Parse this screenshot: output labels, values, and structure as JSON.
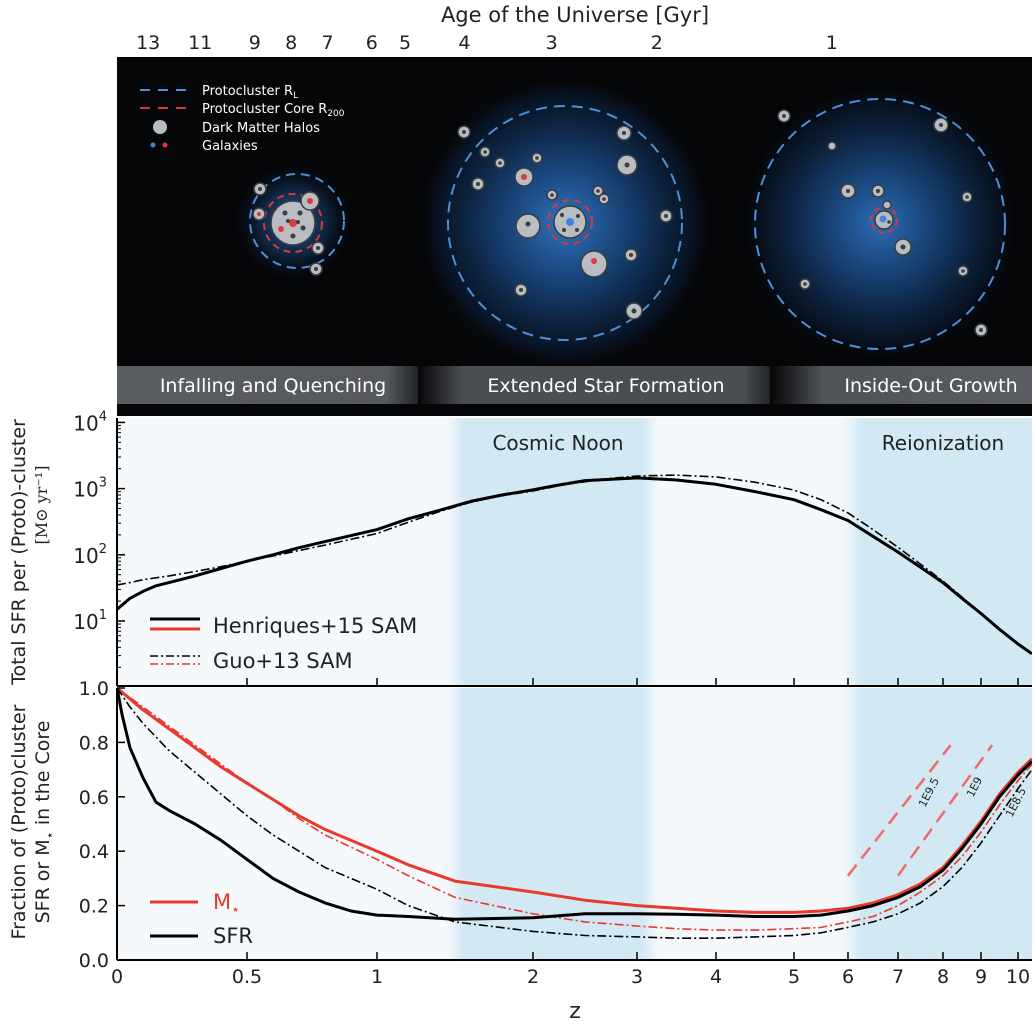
{
  "top_axis": {
    "label": "Age of the Universe  [Gyr]",
    "ticks": [
      {
        "label": "13",
        "z": 0.12
      },
      {
        "label": "11",
        "z": 0.32
      },
      {
        "label": "9",
        "z": 0.53
      },
      {
        "label": "8",
        "z": 0.67
      },
      {
        "label": "7",
        "z": 0.81
      },
      {
        "label": "6",
        "z": 0.98
      },
      {
        "label": "5",
        "z": 1.18
      },
      {
        "label": "4",
        "z": 1.56
      },
      {
        "label": "3",
        "z": 2.18
      },
      {
        "label": "2",
        "z": 3.25
      },
      {
        "label": "1",
        "z": 5.7
      }
    ]
  },
  "illustration": {
    "legend": {
      "protocluster_rl": "Protocluster R",
      "protocluster_rl_sub": "L",
      "core_r200": "Protocluster Core R",
      "core_r200_sub": "200",
      "halos": "Dark Matter Halos",
      "galaxies": "Galaxies"
    },
    "colors": {
      "background": "#050608",
      "dashed_outer": "#4f8fd6",
      "dashed_core": "#d9373b",
      "halo_fill": "#b9bcc0",
      "galaxy_blue": "#3e86d8",
      "galaxy_red": "#e0393c"
    },
    "phases": [
      {
        "label": "Infalling and Quenching"
      },
      {
        "label": "Extended Star Formation"
      },
      {
        "label": "Inside-Out Growth"
      }
    ]
  },
  "chart_data": [
    {
      "type": "line",
      "yscale": "log",
      "ylabel": "Total SFR per (Proto)-cluster",
      "ylabel_unit": "[M⊙ yr⁻¹]",
      "ylim": [
        3,
        10000
      ],
      "y_ticks": [
        {
          "base": "10",
          "exp": "1",
          "value": 10
        },
        {
          "base": "10",
          "exp": "2",
          "value": 100
        },
        {
          "base": "10",
          "exp": "3",
          "value": 1000
        },
        {
          "base": "10",
          "exp": "4",
          "value": 10000
        }
      ],
      "shaded_regions": [
        {
          "label": "Cosmic Noon",
          "z_range": [
            1.5,
            3.0
          ]
        },
        {
          "label": "Reionization",
          "z_range": [
            6.0,
            10.5
          ]
        }
      ],
      "legend": [
        {
          "label": "Henriques+15 SAM",
          "style": "solid"
        },
        {
          "label": "Guo+13 SAM",
          "style": "dashdot"
        }
      ],
      "series": [
        {
          "name": "Henriques+15 SAM",
          "color": "#000000",
          "style": "solid",
          "points": [
            [
              0,
              15
            ],
            [
              0.05,
              22
            ],
            [
              0.1,
              28
            ],
            [
              0.15,
              34
            ],
            [
              0.2,
              38
            ],
            [
              0.3,
              48
            ],
            [
              0.4,
              62
            ],
            [
              0.5,
              80
            ],
            [
              0.6,
              100
            ],
            [
              0.7,
              128
            ],
            [
              0.8,
              158
            ],
            [
              0.9,
              195
            ],
            [
              1.0,
              240
            ],
            [
              1.2,
              350
            ],
            [
              1.4,
              470
            ],
            [
              1.6,
              640
            ],
            [
              1.8,
              800
            ],
            [
              2.0,
              960
            ],
            [
              2.2,
              1100
            ],
            [
              2.5,
              1320
            ],
            [
              3.0,
              1450
            ],
            [
              3.5,
              1350
            ],
            [
              4.0,
              1160
            ],
            [
              4.5,
              900
            ],
            [
              5.0,
              680
            ],
            [
              5.5,
              480
            ],
            [
              6.0,
              330
            ],
            [
              6.5,
              190
            ],
            [
              7.0,
              110
            ],
            [
              7.5,
              65
            ],
            [
              8.0,
              38
            ],
            [
              8.5,
              22
            ],
            [
              9.0,
              13
            ],
            [
              9.5,
              7.5
            ],
            [
              10.0,
              4.5
            ],
            [
              10.4,
              3.2
            ]
          ]
        },
        {
          "name": "Guo+13 SAM",
          "color": "#000000",
          "style": "dashdot",
          "points": [
            [
              0,
              35
            ],
            [
              0.05,
              38
            ],
            [
              0.1,
              42
            ],
            [
              0.2,
              48
            ],
            [
              0.3,
              56
            ],
            [
              0.4,
              66
            ],
            [
              0.5,
              80
            ],
            [
              0.6,
              96
            ],
            [
              0.8,
              140
            ],
            [
              1.0,
              210
            ],
            [
              1.2,
              310
            ],
            [
              1.4,
              450
            ],
            [
              1.6,
              620
            ],
            [
              1.8,
              780
            ],
            [
              2.0,
              920
            ],
            [
              2.3,
              1150
            ],
            [
              2.7,
              1400
            ],
            [
              3.0,
              1550
            ],
            [
              3.5,
              1600
            ],
            [
              4.0,
              1500
            ],
            [
              4.5,
              1250
            ],
            [
              5.0,
              950
            ],
            [
              5.5,
              680
            ],
            [
              6.0,
              430
            ],
            [
              6.5,
              240
            ],
            [
              7.0,
              130
            ],
            [
              7.5,
              72
            ],
            [
              8.0,
              40
            ],
            [
              8.5,
              23
            ],
            [
              9.0,
              13
            ],
            [
              9.5,
              7.5
            ],
            [
              10.0,
              4.5
            ],
            [
              10.4,
              3.3
            ]
          ]
        }
      ]
    },
    {
      "type": "line",
      "ylabel_line1": "Fraction of (Proto)cluster",
      "ylabel_line2": "SFR or M",
      "ylabel_line2_suffix": " in the Core",
      "xlabel": "z",
      "ylim": [
        0.0,
        1.0
      ],
      "y_ticks": [
        "0.0",
        "0.2",
        "0.4",
        "0.6",
        "0.8",
        "1.0"
      ],
      "x_ticks": [
        {
          "label": "0",
          "value": 0
        },
        {
          "label": "0.5",
          "value": 0.5
        },
        {
          "label": "1",
          "value": 1
        },
        {
          "label": "2",
          "value": 2
        },
        {
          "label": "3",
          "value": 3
        },
        {
          "label": "4",
          "value": 4
        },
        {
          "label": "5",
          "value": 5
        },
        {
          "label": "6",
          "value": 6
        },
        {
          "label": "7",
          "value": 7
        },
        {
          "label": "8",
          "value": 8
        },
        {
          "label": "9",
          "value": 9
        },
        {
          "label": "10",
          "value": 10
        }
      ],
      "legend": [
        {
          "label": "M",
          "color": "#e8392c"
        },
        {
          "label": "SFR",
          "color": "#000000"
        }
      ],
      "mass_labels": [
        "1E9.5",
        "1E9",
        "1E8.5"
      ],
      "series": [
        {
          "name": "M⋆ Henriques+15",
          "color": "#e8392c",
          "style": "solid",
          "points": [
            [
              0,
              1.0
            ],
            [
              0.1,
              0.92
            ],
            [
              0.2,
              0.85
            ],
            [
              0.3,
              0.78
            ],
            [
              0.4,
              0.71
            ],
            [
              0.5,
              0.65
            ],
            [
              0.6,
              0.59
            ],
            [
              0.7,
              0.53
            ],
            [
              0.8,
              0.48
            ],
            [
              1.0,
              0.4
            ],
            [
              1.2,
              0.35
            ],
            [
              1.5,
              0.29
            ],
            [
              2.0,
              0.25
            ],
            [
              2.5,
              0.22
            ],
            [
              3.0,
              0.2
            ],
            [
              3.5,
              0.19
            ],
            [
              4.0,
              0.18
            ],
            [
              4.5,
              0.175
            ],
            [
              5.0,
              0.175
            ],
            [
              5.5,
              0.18
            ],
            [
              6.0,
              0.19
            ],
            [
              6.5,
              0.21
            ],
            [
              7.0,
              0.24
            ],
            [
              7.5,
              0.28
            ],
            [
              8.0,
              0.34
            ],
            [
              8.5,
              0.42
            ],
            [
              9.0,
              0.51
            ],
            [
              9.5,
              0.61
            ],
            [
              10.0,
              0.69
            ],
            [
              10.4,
              0.74
            ]
          ]
        },
        {
          "name": "M⋆ Guo+13",
          "color": "#e8392c",
          "style": "dashdot",
          "points": [
            [
              0,
              1.0
            ],
            [
              0.1,
              0.93
            ],
            [
              0.2,
              0.86
            ],
            [
              0.3,
              0.79
            ],
            [
              0.4,
              0.72
            ],
            [
              0.5,
              0.65
            ],
            [
              0.6,
              0.59
            ],
            [
              0.7,
              0.52
            ],
            [
              0.8,
              0.46
            ],
            [
              1.0,
              0.37
            ],
            [
              1.2,
              0.31
            ],
            [
              1.5,
              0.23
            ],
            [
              2.0,
              0.17
            ],
            [
              2.5,
              0.14
            ],
            [
              3.0,
              0.125
            ],
            [
              3.5,
              0.115
            ],
            [
              4.0,
              0.11
            ],
            [
              4.5,
              0.11
            ],
            [
              5.0,
              0.115
            ],
            [
              5.5,
              0.12
            ],
            [
              6.0,
              0.14
            ],
            [
              6.5,
              0.16
            ],
            [
              7.0,
              0.2
            ],
            [
              7.5,
              0.25
            ],
            [
              8.0,
              0.31
            ],
            [
              8.5,
              0.38
            ],
            [
              9.0,
              0.47
            ],
            [
              9.5,
              0.57
            ],
            [
              10.0,
              0.66
            ],
            [
              10.4,
              0.72
            ]
          ]
        },
        {
          "name": "SFR Henriques+15",
          "color": "#000000",
          "style": "solid",
          "points": [
            [
              0,
              1.0
            ],
            [
              0.02,
              0.9
            ],
            [
              0.05,
              0.78
            ],
            [
              0.1,
              0.67
            ],
            [
              0.15,
              0.58
            ],
            [
              0.2,
              0.55
            ],
            [
              0.3,
              0.5
            ],
            [
              0.4,
              0.44
            ],
            [
              0.5,
              0.37
            ],
            [
              0.6,
              0.3
            ],
            [
              0.7,
              0.25
            ],
            [
              0.8,
              0.21
            ],
            [
              0.9,
              0.18
            ],
            [
              1.0,
              0.165
            ],
            [
              1.2,
              0.16
            ],
            [
              1.5,
              0.15
            ],
            [
              2.0,
              0.155
            ],
            [
              2.5,
              0.17
            ],
            [
              3.0,
              0.17
            ],
            [
              3.5,
              0.168
            ],
            [
              4.0,
              0.165
            ],
            [
              4.5,
              0.16
            ],
            [
              5.0,
              0.16
            ],
            [
              5.5,
              0.165
            ],
            [
              6.0,
              0.18
            ],
            [
              6.5,
              0.2
            ],
            [
              7.0,
              0.23
            ],
            [
              7.5,
              0.27
            ],
            [
              8.0,
              0.33
            ],
            [
              8.5,
              0.41
            ],
            [
              9.0,
              0.5
            ],
            [
              9.5,
              0.6
            ],
            [
              10.0,
              0.68
            ],
            [
              10.4,
              0.73
            ]
          ]
        },
        {
          "name": "SFR Guo+13",
          "color": "#000000",
          "style": "dashdot",
          "points": [
            [
              0,
              1.0
            ],
            [
              0.05,
              0.93
            ],
            [
              0.1,
              0.87
            ],
            [
              0.2,
              0.77
            ],
            [
              0.3,
              0.69
            ],
            [
              0.4,
              0.61
            ],
            [
              0.5,
              0.53
            ],
            [
              0.6,
              0.46
            ],
            [
              0.7,
              0.4
            ],
            [
              0.8,
              0.34
            ],
            [
              1.0,
              0.26
            ],
            [
              1.2,
              0.2
            ],
            [
              1.5,
              0.14
            ],
            [
              2.0,
              0.105
            ],
            [
              2.5,
              0.09
            ],
            [
              3.0,
              0.085
            ],
            [
              3.5,
              0.08
            ],
            [
              4.0,
              0.08
            ],
            [
              4.5,
              0.085
            ],
            [
              5.0,
              0.09
            ],
            [
              5.5,
              0.1
            ],
            [
              6.0,
              0.12
            ],
            [
              6.5,
              0.14
            ],
            [
              7.0,
              0.17
            ],
            [
              7.5,
              0.21
            ],
            [
              8.0,
              0.27
            ],
            [
              8.5,
              0.34
            ],
            [
              9.0,
              0.43
            ],
            [
              9.5,
              0.53
            ],
            [
              10.0,
              0.63
            ],
            [
              10.4,
              0.7
            ]
          ]
        },
        {
          "name": "1E9.5",
          "color": "#ef6a6a",
          "style": "dashed",
          "points": [
            [
              6.0,
              0.31
            ],
            [
              8.2,
              0.79
            ]
          ]
        },
        {
          "name": "1E9",
          "color": "#ef6a6a",
          "style": "dashed",
          "points": [
            [
              7.0,
              0.31
            ],
            [
              9.3,
              0.79
            ]
          ]
        }
      ]
    }
  ]
}
